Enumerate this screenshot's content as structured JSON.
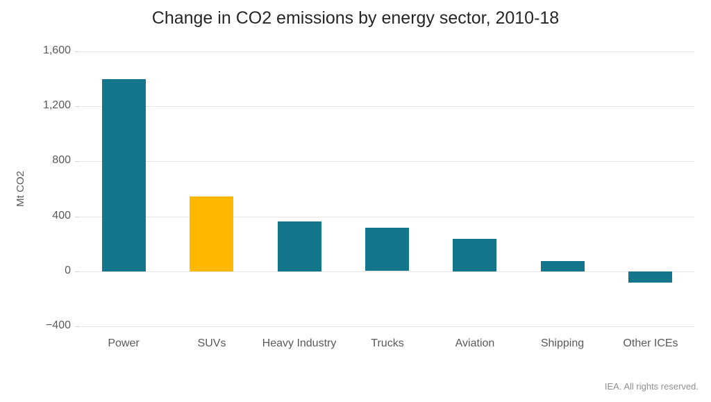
{
  "chart_data": {
    "type": "bar",
    "title": "Change in CO2 emissions by energy sector, 2010-18",
    "xlabel": "",
    "ylabel": "Mt CO2",
    "categories": [
      "Power",
      "SUVs",
      "Heavy Industry",
      "Trucks",
      "Aviation",
      "Shipping",
      "Other ICEs"
    ],
    "values": [
      1400,
      545,
      365,
      315,
      235,
      75,
      -80
    ],
    "ylim": [
      -400,
      1600
    ],
    "yticks": [
      -400,
      0,
      400,
      800,
      1200,
      1600
    ],
    "grid": true,
    "legend": false,
    "bar_color": "#14768a",
    "highlight_index": 1,
    "highlight_color": "#ffb700",
    "gridline_color": "#e6e6e6",
    "source": "IEA. All rights reserved."
  }
}
